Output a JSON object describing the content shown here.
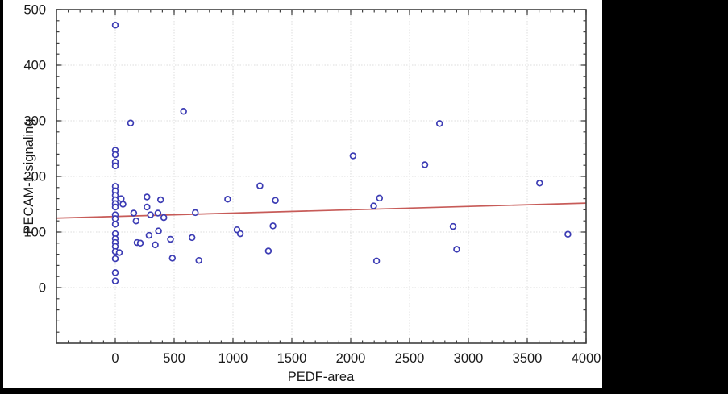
{
  "figure": {
    "background_color": "#ffffff",
    "letterbox_color": "#000000"
  },
  "chart_data": {
    "type": "scatter",
    "title": "",
    "xlabel": "PEDF-area",
    "ylabel": "PECAM-1 signaling",
    "xlim": [
      -500,
      4000
    ],
    "ylim": [
      -100,
      500
    ],
    "x_ticks": [
      0,
      500,
      1000,
      1500,
      2000,
      2500,
      3000,
      3500,
      4000
    ],
    "y_ticks": [
      0,
      100,
      200,
      300,
      400,
      500
    ],
    "x_minor_step": 100,
    "y_minor_step": 20,
    "grid": "dotted major gridlines, mirrored inward ticks on all four frame sides",
    "legend": "none",
    "marker": {
      "shape": "open-circle",
      "color": "#3C3CB4",
      "radius": 3.4,
      "stroke_width": 1.7,
      "fill": "#ffffff"
    },
    "trend_line": {
      "color": "#C75B58",
      "width": 1.7,
      "x1": -500,
      "y1": 125,
      "x2": 4000,
      "y2": 152
    },
    "grid_color": "#DCDCDC",
    "frame_color": "#3F3F3F",
    "text_color": "#1A1A1A",
    "points": [
      [
        0,
        472
      ],
      [
        0,
        247
      ],
      [
        0,
        239
      ],
      [
        0,
        226
      ],
      [
        0,
        219
      ],
      [
        0,
        182
      ],
      [
        0,
        174
      ],
      [
        0,
        166
      ],
      [
        0,
        158
      ],
      [
        0,
        151
      ],
      [
        0,
        145
      ],
      [
        0,
        131
      ],
      [
        0,
        124
      ],
      [
        0,
        114
      ],
      [
        0,
        97
      ],
      [
        0,
        88
      ],
      [
        0,
        81
      ],
      [
        0,
        74
      ],
      [
        0,
        65
      ],
      [
        0,
        52
      ],
      [
        0,
        27
      ],
      [
        0,
        12
      ],
      [
        34,
        63
      ],
      [
        50,
        160
      ],
      [
        65,
        150
      ],
      [
        130,
        296
      ],
      [
        157,
        134
      ],
      [
        177,
        120
      ],
      [
        185,
        81
      ],
      [
        212,
        80
      ],
      [
        269,
        163
      ],
      [
        269,
        145
      ],
      [
        287,
        94
      ],
      [
        299,
        131
      ],
      [
        340,
        77
      ],
      [
        362,
        134
      ],
      [
        367,
        102
      ],
      [
        385,
        158
      ],
      [
        412,
        126
      ],
      [
        469,
        87
      ],
      [
        485,
        53
      ],
      [
        580,
        317
      ],
      [
        652,
        90
      ],
      [
        680,
        135
      ],
      [
        710,
        49
      ],
      [
        955,
        159
      ],
      [
        1034,
        104
      ],
      [
        1062,
        97
      ],
      [
        1229,
        183
      ],
      [
        1301,
        66
      ],
      [
        1340,
        111
      ],
      [
        1360,
        157
      ],
      [
        2020,
        237
      ],
      [
        2195,
        147
      ],
      [
        2245,
        161
      ],
      [
        2220,
        48
      ],
      [
        2630,
        221
      ],
      [
        2755,
        295
      ],
      [
        2870,
        110
      ],
      [
        2900,
        69
      ],
      [
        3605,
        188
      ],
      [
        3845,
        96
      ]
    ]
  }
}
